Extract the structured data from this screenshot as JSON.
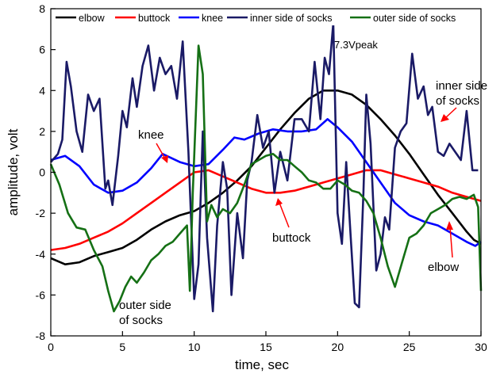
{
  "chart_data": {
    "type": "line",
    "title": "",
    "xlabel": "time,  sec",
    "ylabel": "amplitude,  volt",
    "xlim": [
      0,
      30
    ],
    "ylim": [
      -8,
      8
    ],
    "xticks": [
      0,
      5,
      10,
      15,
      20,
      25,
      30
    ],
    "yticks": [
      -8,
      -6,
      -4,
      -2,
      0,
      2,
      4,
      6,
      8
    ],
    "grid": false,
    "legend_position": "top",
    "series": [
      {
        "name": "elbow",
        "color": "#000000",
        "x": [
          0,
          1,
          2,
          3,
          4,
          5,
          6,
          7,
          8,
          9,
          10,
          11,
          12,
          13,
          14,
          15,
          16,
          17,
          18,
          19,
          20,
          21,
          22,
          23,
          24,
          25,
          26,
          27,
          28,
          29,
          29.5,
          30
        ],
        "y": [
          -4.2,
          -4.5,
          -4.4,
          -4.1,
          -3.9,
          -3.7,
          -3.3,
          -2.8,
          -2.4,
          -2.1,
          -1.9,
          -1.5,
          -1.0,
          -0.4,
          0.3,
          1.2,
          2.1,
          2.9,
          3.6,
          4.0,
          4.0,
          3.8,
          3.3,
          2.6,
          1.8,
          0.9,
          -0.1,
          -1.1,
          -2.0,
          -2.9,
          -3.3,
          -3.5
        ]
      },
      {
        "name": "buttock",
        "color": "#ff0000",
        "x": [
          0,
          1,
          2,
          3,
          4,
          5,
          6,
          7,
          8,
          9,
          10,
          11,
          12,
          13,
          14,
          15,
          16,
          17,
          18,
          19,
          20,
          21,
          22,
          23,
          24,
          25,
          26,
          27,
          28,
          29,
          30
        ],
        "y": [
          -3.8,
          -3.7,
          -3.5,
          -3.2,
          -2.9,
          -2.5,
          -2.0,
          -1.5,
          -1.0,
          -0.5,
          0.0,
          0.1,
          -0.2,
          -0.5,
          -0.8,
          -1.0,
          -1.0,
          -0.9,
          -0.7,
          -0.5,
          -0.3,
          -0.1,
          0.1,
          0.1,
          -0.1,
          -0.3,
          -0.5,
          -0.7,
          -1.0,
          -1.2,
          -1.4
        ]
      },
      {
        "name": "knee",
        "color": "#0000ff",
        "x": [
          0,
          1,
          2,
          3,
          4,
          5,
          6,
          7,
          7.8,
          9,
          10,
          11,
          12,
          12.8,
          13.5,
          14.5,
          15.5,
          16.5,
          17.5,
          18.5,
          19.3,
          20,
          21,
          22,
          23,
          24,
          25,
          26,
          27,
          28,
          29,
          29.6,
          30
        ],
        "y": [
          0.6,
          0.8,
          0.3,
          -0.6,
          -1.0,
          -0.9,
          -0.5,
          0.2,
          0.9,
          0.5,
          0.3,
          0.4,
          1.1,
          1.7,
          1.6,
          1.9,
          2.1,
          2.0,
          2.0,
          2.1,
          2.6,
          2.2,
          1.5,
          0.5,
          -0.5,
          -1.5,
          -2.1,
          -2.4,
          -2.6,
          -3.0,
          -3.4,
          -3.6,
          -3.4
        ]
      },
      {
        "name": "inner side of  socks",
        "color": "#1a1a66",
        "x": [
          0,
          0.5,
          0.8,
          1.1,
          1.4,
          1.8,
          2.2,
          2.6,
          3.0,
          3.4,
          3.8,
          4.0,
          4.3,
          4.7,
          5.0,
          5.3,
          5.7,
          6.0,
          6.4,
          6.8,
          7.2,
          7.6,
          8.0,
          8.4,
          8.8,
          9.2,
          9.6,
          10.0,
          10.3,
          10.6,
          10.9,
          11.3,
          11.6,
          12.0,
          12.3,
          12.6,
          13.0,
          13.4,
          13.7,
          14.0,
          14.4,
          14.8,
          15.2,
          15.6,
          16.0,
          16.5,
          17.0,
          17.5,
          18.0,
          18.4,
          18.8,
          19.1,
          19.4,
          19.7,
          20.0,
          20.3,
          20.6,
          20.9,
          21.2,
          21.5,
          21.8,
          22.0,
          22.3,
          22.7,
          23.0,
          23.3,
          23.6,
          24.0,
          24.4,
          24.8,
          25.2,
          25.6,
          26.0,
          26.3,
          26.6,
          27.0,
          27.4,
          27.8,
          28.2,
          28.6,
          29.0,
          29.4,
          29.8
        ],
        "y": [
          0.5,
          0.9,
          1.6,
          5.4,
          4.2,
          2.0,
          1.0,
          3.8,
          3.0,
          3.6,
          -0.8,
          -0.4,
          -1.6,
          0.8,
          3.0,
          2.2,
          4.6,
          3.2,
          5.2,
          6.2,
          4.0,
          5.6,
          4.8,
          5.2,
          3.6,
          6.4,
          1.0,
          -6.2,
          -4.5,
          2.0,
          -3.2,
          -6.8,
          -2.6,
          0.5,
          -0.8,
          -6.0,
          -2.0,
          -4.2,
          -0.4,
          0.5,
          2.8,
          1.2,
          2.0,
          -1.0,
          1.0,
          -0.4,
          2.6,
          2.6,
          2.0,
          5.4,
          2.6,
          5.6,
          4.8,
          7.3,
          -2.0,
          -3.5,
          0.5,
          -3.0,
          -6.4,
          -6.6,
          -1.0,
          3.8,
          1.4,
          -4.8,
          -4.0,
          -2.2,
          -2.8,
          1.2,
          2.0,
          2.4,
          5.8,
          3.6,
          4.2,
          2.8,
          3.2,
          1.0,
          0.8,
          1.4,
          1.0,
          0.6,
          3.0,
          0.1,
          0.1
        ]
      },
      {
        "name": "outer side of  socks",
        "color": "#157015",
        "x": [
          0,
          0.6,
          1.2,
          1.8,
          2.4,
          3.0,
          3.6,
          4.0,
          4.4,
          4.8,
          5.2,
          5.6,
          6.0,
          6.5,
          7.0,
          7.5,
          8.0,
          8.5,
          9.0,
          9.5,
          9.7,
          9.9,
          10.3,
          10.6,
          10.9,
          11.2,
          11.6,
          12.0,
          12.5,
          13.0,
          13.5,
          14.0,
          14.5,
          15.0,
          15.5,
          16.0,
          16.5,
          17.0,
          17.5,
          18.0,
          18.5,
          19.0,
          19.5,
          20.0,
          20.5,
          21.0,
          21.5,
          22.0,
          22.5,
          23.0,
          23.5,
          24.0,
          24.5,
          25.0,
          25.5,
          26.0,
          26.5,
          27.0,
          27.5,
          28.0,
          28.5,
          29.0,
          29.5,
          29.8,
          30.0
        ],
        "y": [
          0.4,
          -0.6,
          -2.0,
          -2.7,
          -2.8,
          -3.8,
          -4.6,
          -5.8,
          -6.8,
          -6.3,
          -5.6,
          -5.1,
          -5.4,
          -4.9,
          -4.3,
          -4.0,
          -3.6,
          -3.4,
          -3.0,
          -2.6,
          -5.8,
          -1.0,
          6.2,
          4.8,
          -2.4,
          -1.6,
          -2.2,
          -1.8,
          -2.0,
          -1.5,
          -0.6,
          0.4,
          0.6,
          0.8,
          0.9,
          0.6,
          0.6,
          0.3,
          0.0,
          -0.4,
          -0.5,
          -0.8,
          -0.8,
          -0.4,
          -0.6,
          -0.9,
          -1.0,
          -1.4,
          -2.0,
          -3.2,
          -4.6,
          -5.6,
          -4.4,
          -3.2,
          -3.0,
          -2.6,
          -2.0,
          -1.8,
          -1.6,
          -1.3,
          -1.2,
          -1.3,
          -1.1,
          -1.7,
          -5.8
        ]
      }
    ],
    "annotations": {
      "peak": "7.3Vpeak",
      "knee": "knee",
      "buttock": "buttock",
      "elbow": "elbow",
      "inner_line1": "inner side",
      "inner_line2": "of socks",
      "outer_line1": "outer side",
      "outer_line2": "of socks"
    }
  }
}
